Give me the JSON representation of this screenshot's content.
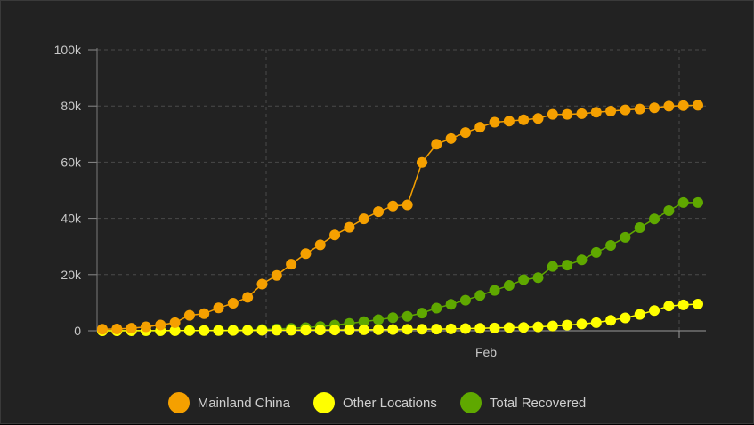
{
  "chart_data": {
    "type": "line",
    "ylim": [
      0,
      100000
    ],
    "y_ticks": [
      0,
      20000,
      40000,
      60000,
      80000,
      100000
    ],
    "y_tick_labels": [
      "0",
      "20k",
      "40k",
      "60k",
      "80k",
      "100k"
    ],
    "x_tick_labels": [
      "Feb"
    ],
    "grid": true,
    "legend_position": "bottom",
    "series": [
      {
        "name": "Mainland China",
        "color": "#F5A000",
        "values": [
          548,
          643,
          920,
          1406,
          2075,
          2877,
          5509,
          6087,
          8141,
          9802,
          11891,
          16630,
          19716,
          23707,
          27440,
          30587,
          34110,
          36814,
          39829,
          42354,
          44386,
          44759,
          59895,
          66358,
          68413,
          70513,
          72434,
          74211,
          74619,
          75077,
          75550,
          77001,
          77022,
          77241,
          77754,
          78166,
          78600,
          78928,
          79356,
          79932,
          80136,
          80261
        ]
      },
      {
        "name": "Other Locations",
        "color": "#FFFF00",
        "values": [
          7,
          10,
          18,
          29,
          40,
          50,
          60,
          70,
          85,
          110,
          140,
          160,
          190,
          210,
          230,
          270,
          290,
          320,
          360,
          390,
          440,
          500,
          560,
          600,
          680,
          790,
          880,
          1000,
          1100,
          1200,
          1400,
          1700,
          2000,
          2400,
          2900,
          3700,
          4600,
          5800,
          7200,
          8800,
          9200,
          9500
        ]
      },
      {
        "name": "Total Recovered",
        "color": "#5FA800",
        "values": [
          28,
          30,
          36,
          39,
          52,
          61,
          107,
          126,
          143,
          222,
          284,
          472,
          623,
          852,
          1124,
          1487,
          2011,
          2616,
          3244,
          3946,
          4683,
          5150,
          6295,
          8058,
          9395,
          10865,
          12583,
          14352,
          16121,
          18177,
          18890,
          22886,
          23394,
          25227,
          27905,
          30384,
          33277,
          36711,
          39782,
          42716,
          45602,
          45600
        ]
      }
    ]
  }
}
